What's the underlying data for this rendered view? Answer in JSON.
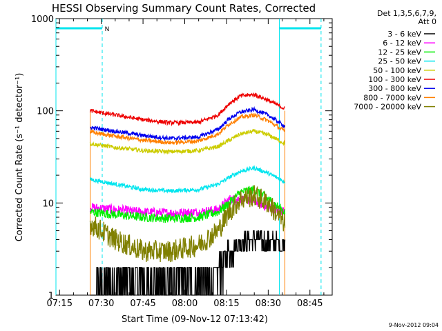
{
  "chart_data": {
    "type": "line",
    "title": "HESSI Observing Summary Count Rates, Corrected",
    "xlabel": "Start Time (09-Nov-12 07:13:42)",
    "ylabel": "Corrected Count Rate (s⁻¹ detector⁻¹)",
    "yscale": "log",
    "ylim": [
      1,
      1000
    ],
    "xlim": [
      "07:13:42",
      "08:53:00"
    ],
    "x_ticks": [
      "07:15",
      "07:30",
      "07:45",
      "08:00",
      "08:15",
      "08:30",
      "08:45"
    ],
    "y_ticks": [
      "1",
      "10",
      "100",
      "1000"
    ],
    "legend_header": [
      "Det 1,3,5,6,7,9,",
      "Att 0"
    ],
    "legend_position": "right",
    "timestamp": "9-Nov-2012 09:04",
    "annotations": [
      {
        "text": "N",
        "time": "07:30",
        "color": "#00e5ee"
      }
    ],
    "night_intervals": [
      {
        "start": "07:13:42",
        "end": "07:30:20"
      },
      {
        "start": "08:34:00",
        "end": "08:49:00"
      }
    ],
    "data_window": {
      "start": "07:26",
      "end": "08:36"
    },
    "series": [
      {
        "name": "3 - 6 keV",
        "color": "#000000",
        "x": [
          "07:26",
          "07:35",
          "07:45",
          "07:55",
          "08:05",
          "08:12",
          "08:16",
          "08:20",
          "08:25",
          "08:30",
          "08:36"
        ],
        "y": [
          1.5,
          1.5,
          1.5,
          1.4,
          1.5,
          2.0,
          3.0,
          3.8,
          4.0,
          3.8,
          3.5
        ]
      },
      {
        "name": "6 - 12 keV",
        "color": "#ff00ff",
        "x": [
          "07:26",
          "07:35",
          "07:45",
          "07:55",
          "08:05",
          "08:12",
          "08:16",
          "08:20",
          "08:25",
          "08:30",
          "08:36"
        ],
        "y": [
          9.0,
          8.5,
          8.0,
          7.8,
          8.0,
          8.5,
          11.0,
          11.0,
          10.5,
          9.0,
          8.0
        ]
      },
      {
        "name": "12 - 25 keV",
        "color": "#00ee00",
        "x": [
          "07:26",
          "07:35",
          "07:45",
          "07:55",
          "08:05",
          "08:12",
          "08:16",
          "08:20",
          "08:25",
          "08:30",
          "08:36"
        ],
        "y": [
          8.0,
          7.5,
          7.0,
          6.8,
          7.0,
          8.0,
          10.0,
          13.0,
          14.0,
          11.0,
          8.0
        ]
      },
      {
        "name": "25 - 50 keV",
        "color": "#00e5ee",
        "x": [
          "07:26",
          "07:35",
          "07:45",
          "07:55",
          "08:05",
          "08:12",
          "08:16",
          "08:20",
          "08:25",
          "08:30",
          "08:36"
        ],
        "y": [
          18.0,
          16.0,
          14.0,
          13.5,
          14.0,
          16.0,
          19.0,
          22.0,
          24.0,
          21.0,
          17.0
        ]
      },
      {
        "name": "50 - 100 keV",
        "color": "#cccc00",
        "x": [
          "07:26",
          "07:35",
          "07:45",
          "07:55",
          "08:05",
          "08:12",
          "08:16",
          "08:20",
          "08:25",
          "08:30",
          "08:36"
        ],
        "y": [
          44.0,
          40.0,
          37.0,
          36.0,
          37.0,
          41.0,
          48.0,
          56.0,
          60.0,
          55.0,
          44.0
        ]
      },
      {
        "name": "100 - 300 keV",
        "color": "#ee0000",
        "x": [
          "07:26",
          "07:35",
          "07:45",
          "07:55",
          "08:05",
          "08:12",
          "08:16",
          "08:20",
          "08:25",
          "08:30",
          "08:36"
        ],
        "y": [
          100.0,
          90.0,
          80.0,
          74.0,
          75.0,
          90.0,
          120.0,
          145.0,
          150.0,
          130.0,
          105.0
        ]
      },
      {
        "name": "300 - 800 keV",
        "color": "#0000ee",
        "x": [
          "07:26",
          "07:35",
          "07:45",
          "07:55",
          "08:05",
          "08:12",
          "08:16",
          "08:20",
          "08:25",
          "08:30",
          "08:36"
        ],
        "y": [
          66.0,
          60.0,
          54.0,
          50.0,
          52.0,
          63.0,
          82.0,
          97.0,
          103.0,
          90.0,
          68.0
        ]
      },
      {
        "name": "800 - 7000 keV",
        "color": "#ff8000",
        "x": [
          "07:26",
          "07:35",
          "07:45",
          "07:55",
          "08:05",
          "08:12",
          "08:16",
          "08:20",
          "08:25",
          "08:30",
          "08:36"
        ],
        "y": [
          59.0,
          53.0,
          48.0,
          45.0,
          47.0,
          56.0,
          72.0,
          85.0,
          90.0,
          78.0,
          60.0
        ]
      },
      {
        "name": "7000 - 20000 keV",
        "color": "#808000",
        "x": [
          "07:26",
          "07:35",
          "07:45",
          "07:55",
          "08:05",
          "08:12",
          "08:16",
          "08:20",
          "08:25",
          "08:30",
          "08:36"
        ],
        "y": [
          6.0,
          4.0,
          3.0,
          3.0,
          3.5,
          5.0,
          8.0,
          11.0,
          12.0,
          10.0,
          6.0
        ]
      }
    ]
  }
}
